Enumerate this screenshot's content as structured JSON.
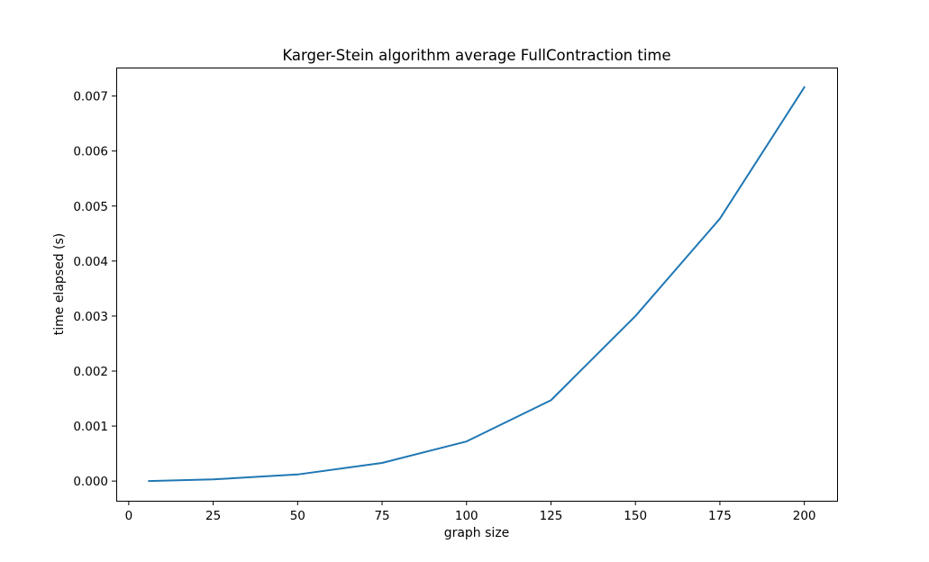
{
  "chart_data": {
    "type": "line",
    "title": "Karger-Stein algorithm average FullContraction time",
    "xlabel": "graph size",
    "ylabel": "time elapsed (s)",
    "x": [
      6,
      25,
      50,
      75,
      100,
      125,
      150,
      175,
      200
    ],
    "series": [
      {
        "values": [
          0.0,
          3e-05,
          0.00012,
          0.00033,
          0.00072,
          0.00147,
          0.003,
          0.00477,
          0.00716
        ],
        "color": "#1f77b4"
      }
    ],
    "xlim": [
      -3.7,
      209.7
    ],
    "ylim": [
      -0.000358,
      0.007518
    ],
    "xticks": [
      0,
      25,
      50,
      75,
      100,
      125,
      150,
      175,
      200
    ],
    "xtick_labels": [
      "0",
      "25",
      "50",
      "75",
      "100",
      "125",
      "150",
      "175",
      "200"
    ],
    "yticks": [
      0,
      0.001,
      0.002,
      0.003,
      0.004,
      0.005,
      0.006,
      0.007
    ],
    "ytick_labels": [
      "0.000",
      "0.001",
      "0.002",
      "0.003",
      "0.004",
      "0.005",
      "0.006",
      "0.007"
    ],
    "grid": false,
    "legend": "none"
  }
}
